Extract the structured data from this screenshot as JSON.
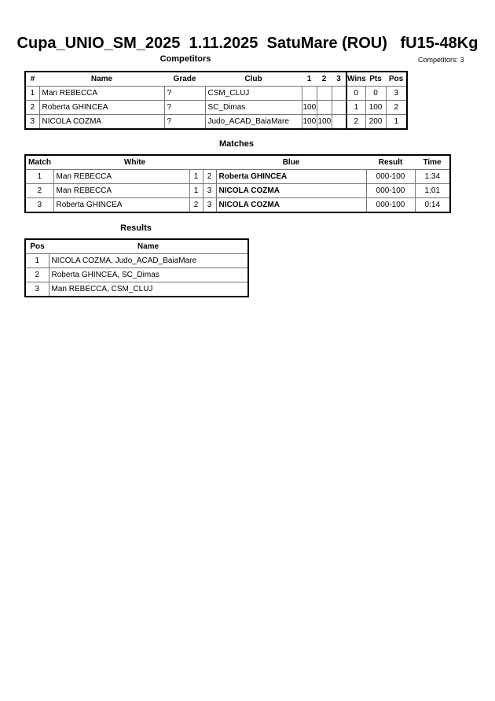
{
  "title": "Cupa_UNIO_SM_2025  1.11.2025  SatuMare (ROU)   fU15-48Kg",
  "competitors": {
    "label": "Competitors",
    "count_label": "Competitors: 3",
    "headers": [
      "#",
      "Name",
      "Grade",
      "Club",
      "1",
      "2",
      "3",
      "Wins",
      "Pts",
      "Pos"
    ],
    "rows": [
      [
        "1",
        "Man REBECCA",
        "?",
        "CSM_CLUJ",
        "",
        "",
        "",
        "0",
        "0",
        "3"
      ],
      [
        "2",
        "Roberta GHINCEA",
        "?",
        "SC_Dimas",
        "100",
        "",
        "",
        "1",
        "100",
        "2"
      ],
      [
        "3",
        "NICOLA COZMA",
        "?",
        "Judo_ACAD_BaiaMare",
        "100",
        "100",
        "",
        "2",
        "200",
        "1"
      ]
    ]
  },
  "matches": {
    "label": "Matches",
    "headers": [
      "Match",
      "White",
      "Blue",
      "Result",
      "Time"
    ],
    "rows": [
      [
        "1",
        "Man REBECCA",
        "1",
        "2",
        "Roberta GHINCEA",
        "000-100",
        "1:34"
      ],
      [
        "2",
        "Man REBECCA",
        "1",
        "3",
        "NICOLA COZMA",
        "000-100",
        "1:01"
      ],
      [
        "3",
        "Roberta GHINCEA",
        "2",
        "3",
        "NICOLA COZMA",
        "000-100",
        "0:14"
      ]
    ]
  },
  "results": {
    "label": "Results",
    "headers": [
      "Pos",
      "Name"
    ],
    "rows": [
      [
        "1",
        "NICOLA COZMA, Judo_ACAD_BaiaMare"
      ],
      [
        "2",
        "Roberta GHINCEA, SC_Dimas"
      ],
      [
        "3",
        "Man REBECCA, CSM_CLUJ"
      ]
    ]
  }
}
